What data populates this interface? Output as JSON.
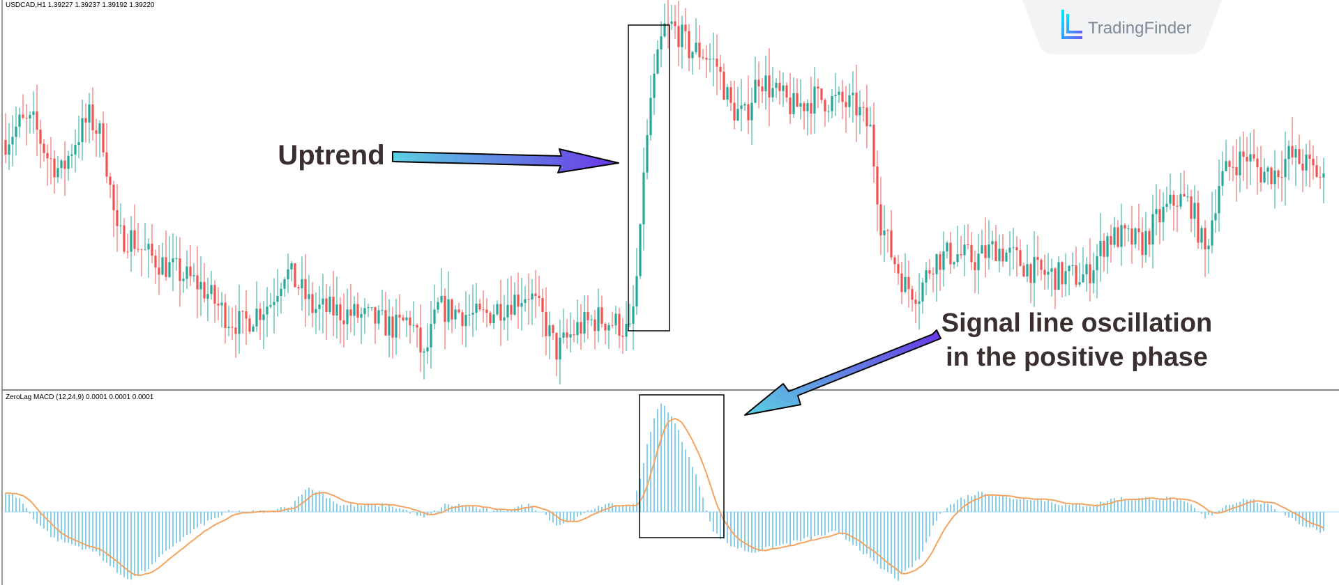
{
  "chart_data": [
    {
      "type": "candlestick",
      "title": "USDCAD,H1  1.39227 1.39237 1.39192 1.39220",
      "symbol": "USDCAD",
      "timeframe": "H1",
      "ohlc_last": [
        1.39227,
        1.39237,
        1.39192,
        1.3922
      ],
      "colors": {
        "up": "#26a69a",
        "down": "#ef5350"
      },
      "price_range": [
        1.385,
        1.3965
      ],
      "anchors": [
        [
          0,
          1.3925
        ],
        [
          4,
          1.393
        ],
        [
          8,
          1.393
        ],
        [
          12,
          1.392
        ],
        [
          16,
          1.3915
        ],
        [
          20,
          1.3925
        ],
        [
          24,
          1.3932
        ],
        [
          28,
          1.3925
        ],
        [
          32,
          1.3895
        ],
        [
          36,
          1.3895
        ],
        [
          40,
          1.389
        ],
        [
          48,
          1.3885
        ],
        [
          56,
          1.388
        ],
        [
          64,
          1.387
        ],
        [
          68,
          1.3868
        ],
        [
          72,
          1.3872
        ],
        [
          76,
          1.3875
        ],
        [
          80,
          1.3885
        ],
        [
          84,
          1.388
        ],
        [
          88,
          1.3873
        ],
        [
          96,
          1.3872
        ],
        [
          104,
          1.387
        ],
        [
          112,
          1.3867
        ],
        [
          116,
          1.387
        ],
        [
          120,
          1.3857
        ],
        [
          124,
          1.3873
        ],
        [
          130,
          1.3872
        ],
        [
          136,
          1.387
        ],
        [
          144,
          1.3875
        ],
        [
          150,
          1.3878
        ],
        [
          154,
          1.387
        ],
        [
          158,
          1.386
        ],
        [
          164,
          1.3867
        ],
        [
          170,
          1.387
        ],
        [
          176,
          1.3868
        ],
        [
          179,
          1.3865
        ],
        [
          181,
          1.388
        ],
        [
          183,
          1.3912
        ],
        [
          185,
          1.3935
        ],
        [
          187,
          1.395
        ],
        [
          189,
          1.3958
        ],
        [
          191,
          1.396
        ],
        [
          193,
          1.3958
        ],
        [
          196,
          1.3953
        ],
        [
          200,
          1.3952
        ],
        [
          204,
          1.3948
        ],
        [
          208,
          1.3935
        ],
        [
          212,
          1.3932
        ],
        [
          216,
          1.3945
        ],
        [
          220,
          1.394
        ],
        [
          226,
          1.3935
        ],
        [
          232,
          1.3938
        ],
        [
          238,
          1.3937
        ],
        [
          244,
          1.3935
        ],
        [
          248,
          1.3928
        ],
        [
          251,
          1.39
        ],
        [
          254,
          1.389
        ],
        [
          258,
          1.388
        ],
        [
          262,
          1.3878
        ],
        [
          266,
          1.3888
        ],
        [
          272,
          1.389
        ],
        [
          278,
          1.3888
        ],
        [
          284,
          1.3892
        ],
        [
          290,
          1.3888
        ],
        [
          296,
          1.3884
        ],
        [
          302,
          1.3883
        ],
        [
          310,
          1.3883
        ],
        [
          316,
          1.3895
        ],
        [
          320,
          1.3895
        ],
        [
          326,
          1.3893
        ],
        [
          330,
          1.39
        ],
        [
          336,
          1.3907
        ],
        [
          340,
          1.3905
        ],
        [
          344,
          1.389
        ],
        [
          348,
          1.3912
        ],
        [
          352,
          1.3918
        ],
        [
          356,
          1.392
        ],
        [
          360,
          1.3915
        ],
        [
          364,
          1.3915
        ],
        [
          368,
          1.392
        ],
        [
          372,
          1.3918
        ],
        [
          376,
          1.3915
        ],
        [
          378,
          1.3912
        ]
      ]
    },
    {
      "type": "macd",
      "title": "ZeroLag MACD (12,24,9) 0.0001 0.0001 0.0001",
      "params": [
        12,
        24,
        9
      ],
      "colors": {
        "histogram": "#87ceeb",
        "signal": "#f4a460"
      },
      "value_range": [
        -0.0011,
        0.0016
      ],
      "anchors": [
        [
          0,
          0.0003
        ],
        [
          4,
          0.0002
        ],
        [
          8,
          -0.0001
        ],
        [
          14,
          -0.0004
        ],
        [
          20,
          -0.0005
        ],
        [
          26,
          -0.0006
        ],
        [
          32,
          -0.0009
        ],
        [
          36,
          -0.001
        ],
        [
          42,
          -0.0008
        ],
        [
          48,
          -0.0005
        ],
        [
          56,
          -0.0002
        ],
        [
          64,
          0.0
        ],
        [
          70,
          0.0
        ],
        [
          76,
          0.0
        ],
        [
          82,
          0.0001
        ],
        [
          86,
          0.00035
        ],
        [
          90,
          0.0003
        ],
        [
          96,
          0.0001
        ],
        [
          102,
          0.0001
        ],
        [
          110,
          0.0001
        ],
        [
          116,
          0.0
        ],
        [
          120,
          -0.0001
        ],
        [
          126,
          0.0001
        ],
        [
          132,
          0.0001
        ],
        [
          140,
          0.0
        ],
        [
          150,
          0.0001
        ],
        [
          154,
          0.0
        ],
        [
          158,
          -0.0002
        ],
        [
          164,
          -0.0001
        ],
        [
          170,
          0.0001
        ],
        [
          176,
          0.0001
        ],
        [
          180,
          0.0001
        ],
        [
          182,
          0.0005
        ],
        [
          184,
          0.001
        ],
        [
          186,
          0.0014
        ],
        [
          188,
          0.0016
        ],
        [
          190,
          0.0015
        ],
        [
          193,
          0.0012
        ],
        [
          196,
          0.0008
        ],
        [
          199,
          0.0004
        ],
        [
          203,
          -0.0003
        ],
        [
          208,
          -0.0005
        ],
        [
          214,
          -0.0006
        ],
        [
          222,
          -0.0005
        ],
        [
          230,
          -0.0004
        ],
        [
          238,
          -0.0003
        ],
        [
          244,
          -0.0005
        ],
        [
          250,
          -0.0008
        ],
        [
          256,
          -0.001
        ],
        [
          262,
          -0.0007
        ],
        [
          268,
          0.0
        ],
        [
          274,
          0.0002
        ],
        [
          280,
          0.0003
        ],
        [
          288,
          0.0002
        ],
        [
          296,
          0.0002
        ],
        [
          304,
          0.0001
        ],
        [
          312,
          0.0001
        ],
        [
          318,
          0.0002
        ],
        [
          326,
          0.0002
        ],
        [
          334,
          0.0002
        ],
        [
          340,
          0.0001
        ],
        [
          344,
          -0.0001
        ],
        [
          350,
          0.0001
        ],
        [
          356,
          0.0002
        ],
        [
          362,
          0.0001
        ],
        [
          366,
          0.0
        ],
        [
          372,
          -0.0002
        ],
        [
          378,
          -0.0003
        ]
      ]
    }
  ],
  "annotations": {
    "uptrend": "Uptrend",
    "signal_line_1": "Signal line oscillation",
    "signal_line_2": "in the positive phase"
  },
  "logo": {
    "text": "TradingFinder"
  }
}
